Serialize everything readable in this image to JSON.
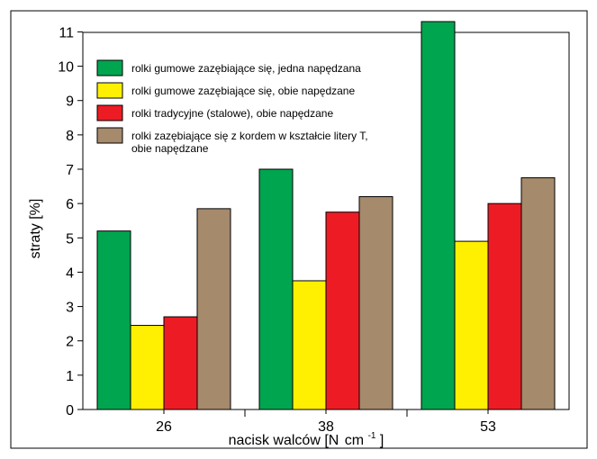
{
  "chart_data": {
    "type": "bar",
    "categories": [
      "26",
      "38",
      "53"
    ],
    "xlabel": "nacisk walców [N cm-1]",
    "xlabel_main": "nacisk walców [N",
    "xlabel_unit": "cm",
    "xlabel_exp": "-1",
    "xlabel_close": "]",
    "ylabel": "straty [%]",
    "ylim": [
      0,
      11.3
    ],
    "yticks": [
      "0",
      "1",
      "2",
      "3",
      "4",
      "5",
      "6",
      "7",
      "8",
      "9",
      "10",
      "11"
    ],
    "grid": false,
    "legend_position": "top-left",
    "series": [
      {
        "name": "rolki gumowe zazębiające się, jedna napędzana",
        "name_lines": [
          "rolki gumowe zazębiające się, jedna napędzana"
        ],
        "color": "#00a54f",
        "values": [
          5.2,
          7.0,
          11.3
        ]
      },
      {
        "name": "rolki gumowe zazębiające się, obie napędzane",
        "name_lines": [
          "rolki gumowe zazębiające się, obie napędzane"
        ],
        "color": "#ffef00",
        "values": [
          2.45,
          3.75,
          4.9
        ]
      },
      {
        "name": "rolki tradycyjne (stalowe), obie napędzane",
        "name_lines": [
          "rolki tradycyjne (stalowe), obie napędzane"
        ],
        "color": "#ed1c24",
        "values": [
          2.7,
          5.75,
          6.0
        ]
      },
      {
        "name": "rolki zazębiające się z kordem w kształcie litery T, obie napędzane",
        "name_lines": [
          "rolki zazębiające się z kordem w kształcie litery T,",
          "obie napędzane"
        ],
        "color": "#a68a6c",
        "values": [
          5.85,
          6.2,
          6.75
        ]
      }
    ]
  }
}
